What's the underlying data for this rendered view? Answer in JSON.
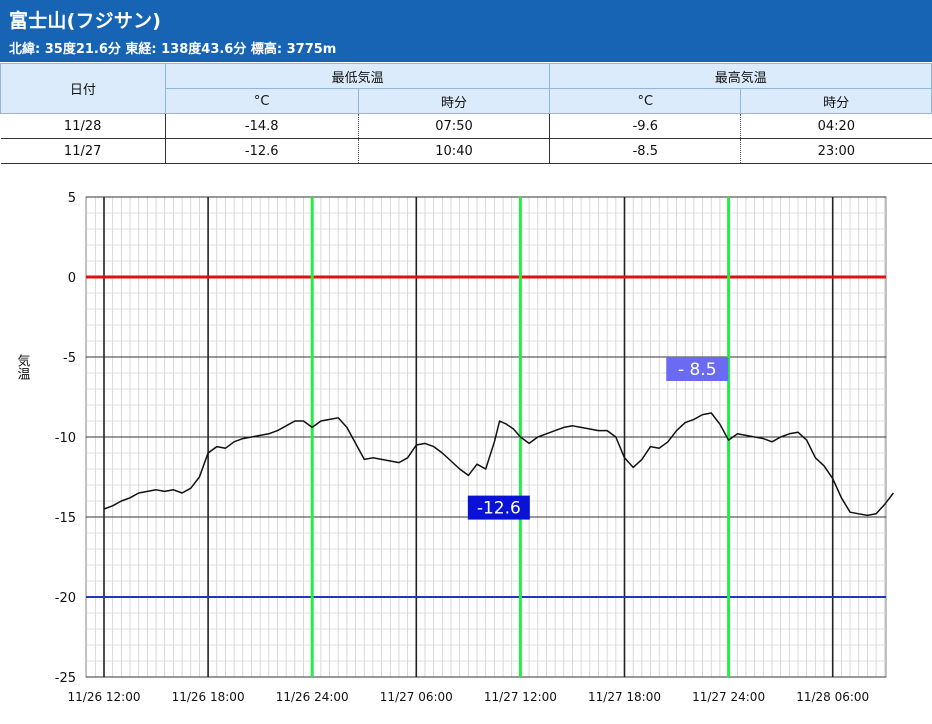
{
  "header": {
    "title": "富士山(フジサン)",
    "subtitle": "北緯: 35度21.6分 東経: 138度43.6分 標高: 3775m"
  },
  "summary_table": {
    "date_header": "日付",
    "min_header": "最低気温",
    "max_header": "最高気温",
    "unit_c": "°C",
    "unit_time": "時分",
    "rows": [
      {
        "date": "11/28",
        "min_c": "-14.8",
        "min_time": "07:50",
        "max_c": "-9.6",
        "max_time": "04:20"
      },
      {
        "date": "11/27",
        "min_c": "-12.6",
        "min_time": "10:40",
        "max_c": "-8.5",
        "max_time": "23:00"
      }
    ]
  },
  "chart_data": {
    "type": "line",
    "ylabel": "気温",
    "ylim": [
      -25,
      5
    ],
    "yticks": [
      "5",
      "0",
      "-5",
      "-10",
      "-15",
      "-20",
      "-25"
    ],
    "xtick_labels": [
      "11/26 12:00",
      "11/26 18:00",
      "11/26 24:00",
      "11/27 06:00",
      "11/27 12:00",
      "11/27 18:00",
      "11/27 24:00",
      "11/28 06:00"
    ],
    "reference_lines": {
      "zero": 0,
      "low": -20
    },
    "highlight_times_h": [
      12,
      24,
      36
    ],
    "colors": {
      "series": "#111111",
      "zero": "#dd1111",
      "low": "#2233cc",
      "highlight": "#22ee44",
      "min_box": "#0a12d8",
      "max_box": "#6a6af2"
    },
    "annotations": [
      {
        "text": "-12.6",
        "x_h": 22.7,
        "y": -12.6,
        "style": "min"
      },
      {
        "text": "- 8.5",
        "x_h": 35.0,
        "y": -8.5,
        "style": "max"
      }
    ],
    "series": [
      {
        "x_h": [
          0,
          0.5,
          1,
          1.5,
          2,
          2.5,
          3,
          3.5,
          4,
          4.5,
          5,
          5.5,
          6,
          6.5,
          7,
          7.5,
          8,
          8.5,
          9,
          9.5,
          10,
          10.5,
          11,
          11.5,
          12,
          12.5,
          13,
          13.5,
          14,
          14.5,
          15,
          15.5,
          16,
          16.5,
          17,
          17.5,
          18,
          18.5,
          19,
          19.5,
          20,
          20.5,
          21,
          21.5,
          22,
          22.5,
          22.8,
          23.2,
          23.6,
          24,
          24.5,
          25,
          25.5,
          26,
          26.5,
          27,
          27.5,
          28,
          28.5,
          29,
          29.5,
          30,
          30.5,
          31,
          31.5,
          32,
          32.5,
          33,
          33.5,
          34,
          34.5,
          35,
          35.5,
          36,
          36.5,
          37,
          37.5,
          38,
          38.5,
          39,
          39.5,
          40,
          40.5,
          41,
          41.5,
          42,
          42.5,
          43,
          43.5,
          44,
          44.5,
          45,
          45.5
        ],
        "y": [
          -14.5,
          -14.3,
          -14.0,
          -13.8,
          -13.5,
          -13.4,
          -13.3,
          -13.4,
          -13.3,
          -13.5,
          -13.2,
          -12.5,
          -11.0,
          -10.6,
          -10.7,
          -10.3,
          -10.1,
          -10.0,
          -9.9,
          -9.8,
          -9.6,
          -9.3,
          -9.0,
          -9.0,
          -9.4,
          -9.0,
          -8.9,
          -8.8,
          -9.4,
          -10.4,
          -11.4,
          -11.3,
          -11.4,
          -11.5,
          -11.6,
          -11.3,
          -10.5,
          -10.4,
          -10.6,
          -11.0,
          -11.5,
          -12.0,
          -12.4,
          -11.7,
          -12.0,
          -10.3,
          -9.0,
          -9.2,
          -9.5,
          -10.0,
          -10.4,
          -10.0,
          -9.8,
          -9.6,
          -9.4,
          -9.3,
          -9.4,
          -9.5,
          -9.6,
          -9.6,
          -10.0,
          -11.3,
          -11.9,
          -11.4,
          -10.6,
          -10.7,
          -10.3,
          -9.6,
          -9.1,
          -8.9,
          -8.6,
          -8.5,
          -9.2,
          -10.2,
          -9.8,
          -9.9,
          -10.0,
          -10.1,
          -10.3,
          -10.0,
          -9.8,
          -9.7,
          -10.2,
          -11.3,
          -11.8,
          -12.6,
          -13.8,
          -14.7,
          -14.8,
          -14.9,
          -14.8,
          -14.2,
          -13.5
        ]
      }
    ]
  }
}
